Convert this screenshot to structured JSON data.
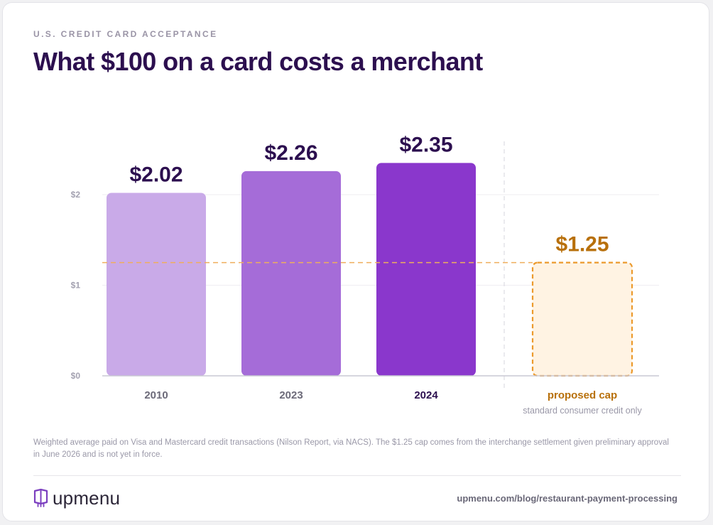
{
  "header": {
    "eyebrow": "U.S. CREDIT CARD ACCEPTANCE",
    "title": "What $100 on a card costs a merchant"
  },
  "chart_data": {
    "type": "bar",
    "categories": [
      "2010",
      "2023",
      "2024",
      "proposed cap"
    ],
    "values": [
      2.02,
      2.26,
      2.35,
      1.25
    ],
    "value_labels": [
      "$2.02",
      "$2.26",
      "$2.35",
      "$1.25"
    ],
    "sublabels": [
      "",
      "",
      "",
      "standard consumer credit only"
    ],
    "bar_colors": [
      "#c9aae8",
      "#a56cd8",
      "#8a37cc",
      "#fff3e3"
    ],
    "value_label_colors": [
      "#2c0f4f",
      "#2c0f4f",
      "#2c0f4f",
      "#b8700b"
    ],
    "category_label_colors": [
      "#6c6a79",
      "#6c6a79",
      "#2c0f4f",
      "#b8700b"
    ],
    "proposed_index": 3,
    "proposed_border_color": "#ec9a2c",
    "reference_line": {
      "value": 1.25,
      "color": "#efae5c",
      "style": "dashed"
    },
    "yticks": [
      0,
      1,
      2
    ],
    "ytick_labels": [
      "$0",
      "$1",
      "$2"
    ],
    "ylim": [
      0,
      2.35
    ],
    "grid": true,
    "separator_before_index": 3
  },
  "footnote": "Weighted average paid on Visa and Mastercard credit transactions (Nilson Report, via NACS). The $1.25 cap comes from the interchange settlement given preliminary approval in June 2026 and is not yet in force.",
  "footer": {
    "brand": "upmenu",
    "brand_icon": "upmenu-logo-icon",
    "brand_color": "#7b3fbf",
    "url": "upmenu.com/blog/restaurant-payment-processing"
  }
}
